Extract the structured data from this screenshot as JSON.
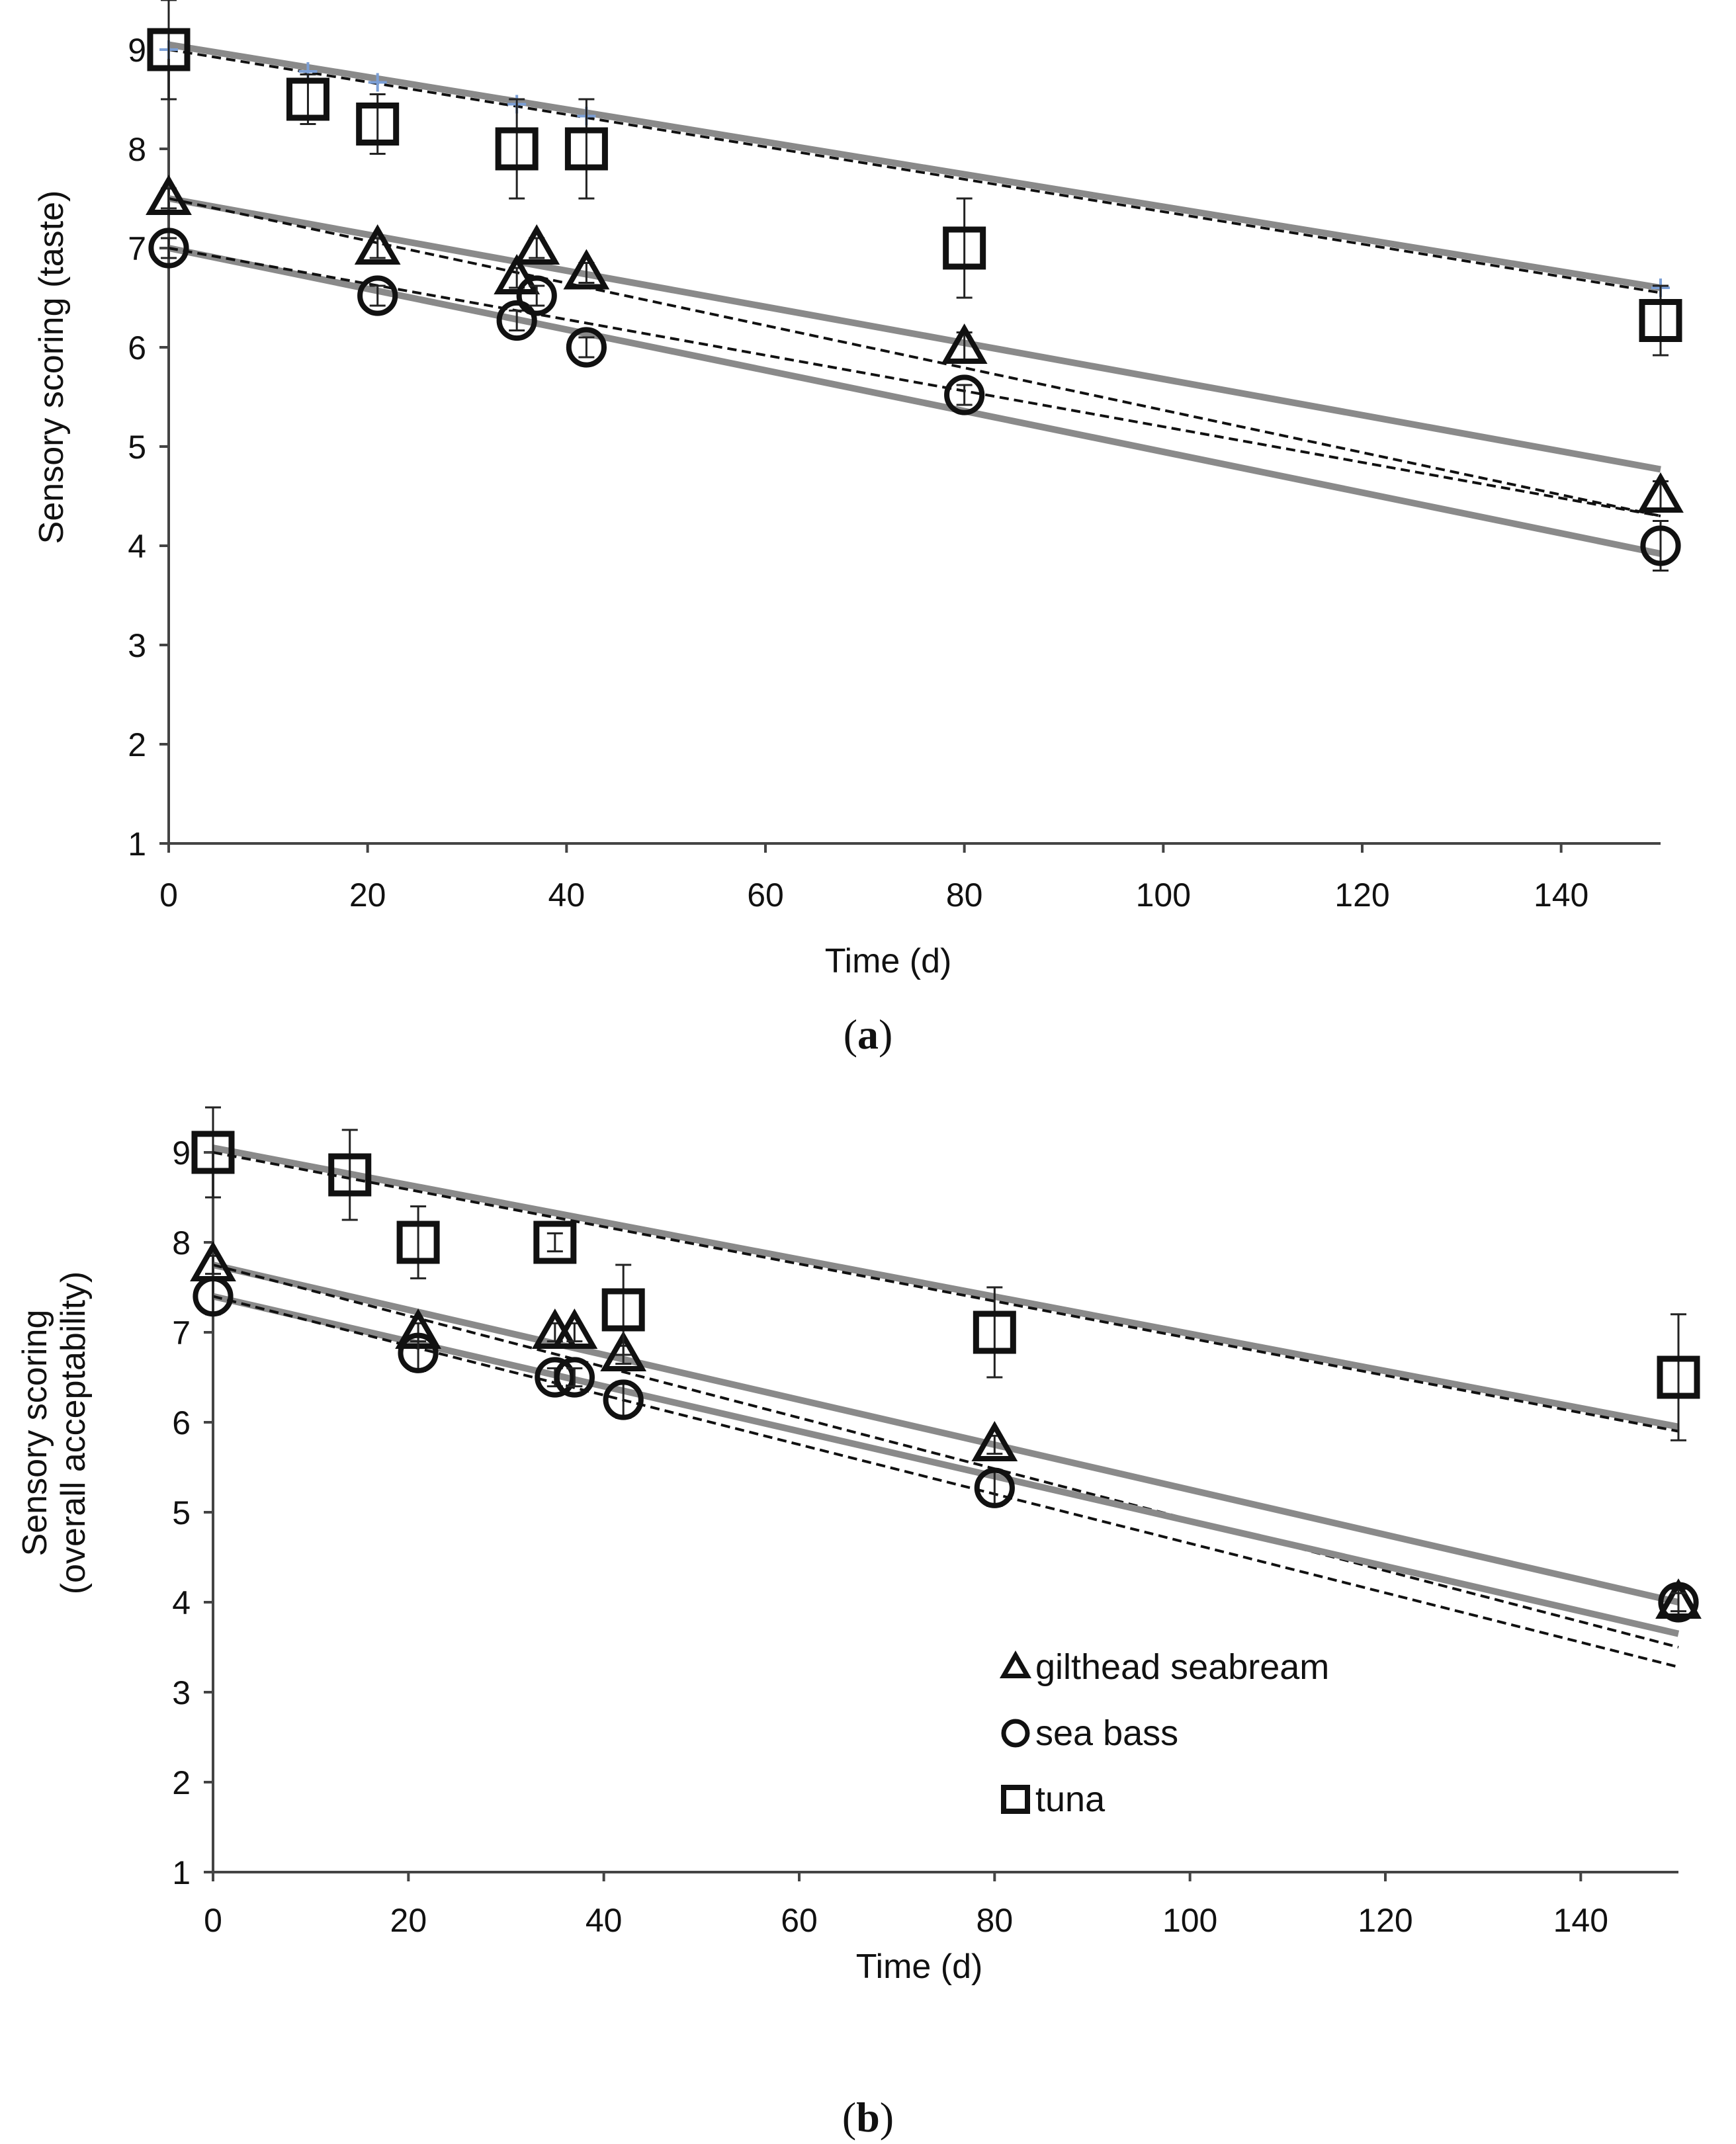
{
  "legend": {
    "items": [
      {
        "label": "gilthead seabream",
        "marker": "triangle"
      },
      {
        "label": "sea bass",
        "marker": "circle"
      },
      {
        "label": "tuna",
        "marker": "square"
      }
    ]
  },
  "chart_data": [
    {
      "type": "scatter",
      "caption": {
        "open": "(",
        "letter": "a",
        "close": ")"
      },
      "xlabel": "Time (d)",
      "ylabel": "Sensory scoring (taste)",
      "ylabel_lines": [
        "Sensory scoring (taste)"
      ],
      "xlim": [
        0,
        150
      ],
      "ylim": [
        1,
        9
      ],
      "xticks": [
        0,
        20,
        40,
        60,
        80,
        100,
        120,
        140
      ],
      "yticks": [
        1,
        2,
        3,
        4,
        5,
        6,
        7,
        8,
        9
      ],
      "grid": false,
      "series": [
        {
          "name": "gilthead seabream",
          "marker": "triangle",
          "x": [
            0,
            21,
            35,
            37,
            42,
            80,
            150
          ],
          "y": [
            7.5,
            7.0,
            6.7,
            7.0,
            6.75,
            6.0,
            4.5
          ],
          "err": [
            0.1,
            0.1,
            0.1,
            0.1,
            0.1,
            0.15,
            0.15
          ],
          "fit_solid": [
            7.5,
            4.77
          ],
          "fit_dashed": [
            7.5,
            4.3
          ]
        },
        {
          "name": "sea bass",
          "marker": "circle",
          "x": [
            0,
            21,
            35,
            37,
            42,
            80,
            150
          ],
          "y": [
            7.0,
            6.52,
            6.27,
            6.52,
            6.0,
            5.52,
            4.0
          ],
          "err": [
            0.1,
            0.1,
            0.1,
            0.1,
            0.1,
            0.1,
            0.25
          ],
          "fit_solid": [
            7.0,
            3.92
          ],
          "fit_dashed": [
            7.0,
            4.3
          ]
        },
        {
          "name": "tuna",
          "marker": "square",
          "x": [
            0,
            14,
            21,
            35,
            42,
            80,
            150
          ],
          "y": [
            9.0,
            8.5,
            8.25,
            8.0,
            8.0,
            7.0,
            6.27
          ],
          "err": [
            0.5,
            0.25,
            0.3,
            0.5,
            0.5,
            0.5,
            0.35
          ],
          "fit_solid": [
            9.05,
            6.6
          ],
          "fit_dashed": [
            9.0,
            6.55
          ],
          "fit_points": {
            "x": [
              0,
              14,
              21,
              35,
              42,
              150
            ],
            "y": [
              9.0,
              8.78,
              8.67,
              8.45,
              8.33,
              6.6
            ]
          }
        }
      ]
    },
    {
      "type": "scatter",
      "caption": {
        "open": "(",
        "letter": "b",
        "close": ")"
      },
      "xlabel": "Time (d)",
      "ylabel": "Sensory scoring (overall acceptability)",
      "ylabel_lines": [
        "Sensory scoring",
        "(overall acceptability)"
      ],
      "xlim": [
        0,
        150
      ],
      "ylim": [
        1,
        9
      ],
      "xticks": [
        0,
        20,
        40,
        60,
        80,
        100,
        120,
        140
      ],
      "yticks": [
        1,
        2,
        3,
        4,
        5,
        6,
        7,
        8,
        9
      ],
      "grid": false,
      "legend_position": "bottom-right",
      "series": [
        {
          "name": "gilthead seabream",
          "marker": "triangle",
          "x": [
            0,
            21,
            35,
            37,
            42,
            80,
            150
          ],
          "y": [
            7.75,
            7.0,
            7.0,
            7.0,
            6.75,
            5.75,
            4.0
          ],
          "err": [
            0.1,
            0.1,
            0.1,
            0.1,
            0.1,
            0.1,
            0.15
          ],
          "fit_solid": [
            7.75,
            4.0
          ],
          "fit_dashed": [
            7.75,
            3.5
          ]
        },
        {
          "name": "sea bass",
          "marker": "circle",
          "x": [
            0,
            21,
            35,
            37,
            42,
            80,
            150
          ],
          "y": [
            7.4,
            6.77,
            6.5,
            6.5,
            6.25,
            5.27,
            4.0
          ],
          "err": [
            0.2,
            0.2,
            0.1,
            0.1,
            0.2,
            0.2,
            0.1
          ],
          "fit_solid": [
            7.4,
            3.65
          ],
          "fit_dashed": [
            7.4,
            3.28
          ]
        },
        {
          "name": "tuna",
          "marker": "square",
          "x": [
            0,
            14,
            21,
            35,
            42,
            80,
            150
          ],
          "y": [
            9.0,
            8.75,
            8.0,
            8.0,
            7.25,
            7.0,
            6.5
          ],
          "err": [
            0.5,
            0.5,
            0.4,
            0.1,
            0.5,
            0.5,
            0.7
          ],
          "fit_solid": [
            9.05,
            5.95
          ],
          "fit_dashed": [
            9.0,
            5.9
          ]
        }
      ]
    }
  ]
}
